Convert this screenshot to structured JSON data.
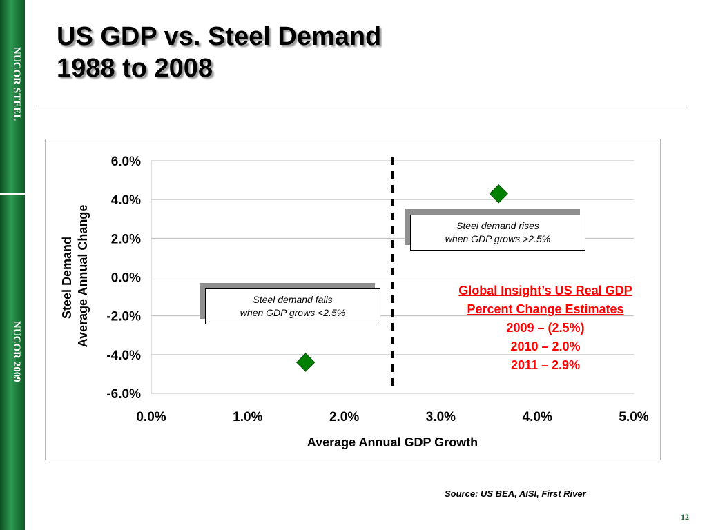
{
  "brand": {
    "sidebar_top": "NUCOR STEEL",
    "sidebar_bottom": "NUCOR 2009",
    "sidebar_color": "#1e7a3c"
  },
  "title": {
    "line1": "US GDP vs. Steel Demand",
    "line2": "1988 to 2008"
  },
  "chart_data": {
    "type": "scatter",
    "xlabel": "Average Annual GDP Growth",
    "ylabel_lines": [
      "Steel Demand",
      "Average Annual Change"
    ],
    "x_ticks": [
      "0.0%",
      "1.0%",
      "2.0%",
      "3.0%",
      "4.0%",
      "5.0%"
    ],
    "y_ticks": [
      "6.0%",
      "4.0%",
      "2.0%",
      "0.0%",
      "-2.0%",
      "-4.0%",
      "-6.0%"
    ],
    "xlim": [
      0,
      5
    ],
    "ylim": [
      -6,
      6
    ],
    "grid": true,
    "marker": "diamond",
    "marker_color": "#008000",
    "points": [
      {
        "x": 1.6,
        "y": -4.4
      },
      {
        "x": 3.6,
        "y": 4.3
      }
    ],
    "threshold_line": {
      "x": 2.5,
      "style": "dashed"
    },
    "annotations": [
      {
        "id": "falls",
        "line1": "Steel demand falls",
        "line2": "when GDP grows <2.5%"
      },
      {
        "id": "rises",
        "line1": "Steel demand rises",
        "line2": "when GDP grows >2.5%"
      }
    ]
  },
  "estimates": {
    "heading1": "Global Insight’s US Real GDP",
    "heading2": "Percent Change Estimates",
    "rows": [
      "2009 – (2.5%)",
      "2010 – 2.0%",
      "2011 – 2.9%"
    ],
    "color": "#ff0000"
  },
  "source": "Source: US BEA, AISI, First River",
  "page_number": "12"
}
